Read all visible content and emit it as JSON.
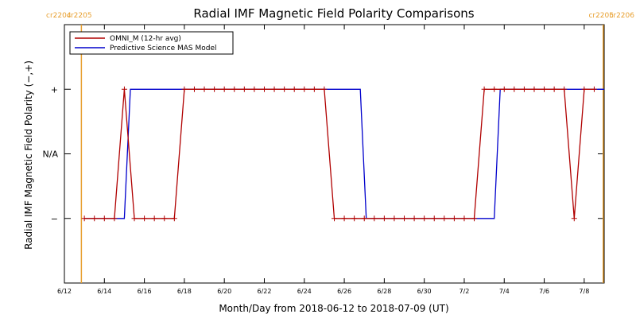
{
  "chart_data": {
    "type": "line",
    "title": "Radial IMF Magnetic Field Polarity Comparisons",
    "xlabel": "Month/Day from 2018-06-12 to 2018-07-09 (UT)",
    "ylabel": "Radial IMF Magnetic Field Polarity (−,+)",
    "x_range_days": [
      0,
      27
    ],
    "y_range": [
      -2,
      2
    ],
    "y_ticks": [
      {
        "value": -1,
        "label": "−"
      },
      {
        "value": 0,
        "label": "N/A"
      },
      {
        "value": 1,
        "label": "+"
      }
    ],
    "x_ticks": [
      {
        "day": 0,
        "label": "6/12"
      },
      {
        "day": 2,
        "label": "6/14"
      },
      {
        "day": 4,
        "label": "6/16"
      },
      {
        "day": 6,
        "label": "6/18"
      },
      {
        "day": 8,
        "label": "6/20"
      },
      {
        "day": 10,
        "label": "6/22"
      },
      {
        "day": 12,
        "label": "6/24"
      },
      {
        "day": 14,
        "label": "6/26"
      },
      {
        "day": 16,
        "label": "6/28"
      },
      {
        "day": 18,
        "label": "6/30"
      },
      {
        "day": 20,
        "label": "7/2"
      },
      {
        "day": 22,
        "label": "7/4"
      },
      {
        "day": 24,
        "label": "7/6"
      },
      {
        "day": 26,
        "label": "7/8"
      }
    ],
    "rotation_markers": [
      {
        "day": 0.85,
        "left_label": "cr2204",
        "right_label": "cr2205"
      },
      {
        "day": 26.95,
        "left_label": "cr2205",
        "right_label": "cr2206"
      }
    ],
    "series": [
      {
        "name": "OMNI_M (12-hr avg)",
        "color": "#b00000",
        "markers": true,
        "points": [
          [
            1.0,
            -1
          ],
          [
            1.5,
            -1
          ],
          [
            2.0,
            -1
          ],
          [
            2.5,
            -1
          ],
          [
            3.0,
            1
          ],
          [
            3.5,
            -1
          ],
          [
            4.0,
            -1
          ],
          [
            4.5,
            -1
          ],
          [
            5.0,
            -1
          ],
          [
            5.5,
            -1
          ],
          [
            6.0,
            1
          ],
          [
            6.5,
            1
          ],
          [
            7.0,
            1
          ],
          [
            7.5,
            1
          ],
          [
            8.0,
            1
          ],
          [
            8.5,
            1
          ],
          [
            9.0,
            1
          ],
          [
            9.5,
            1
          ],
          [
            10.0,
            1
          ],
          [
            10.5,
            1
          ],
          [
            11.0,
            1
          ],
          [
            11.5,
            1
          ],
          [
            12.0,
            1
          ],
          [
            12.5,
            1
          ],
          [
            13.0,
            1
          ],
          [
            13.5,
            -1
          ],
          [
            14.0,
            -1
          ],
          [
            14.5,
            -1
          ],
          [
            15.0,
            -1
          ],
          [
            15.5,
            -1
          ],
          [
            16.0,
            -1
          ],
          [
            16.5,
            -1
          ],
          [
            17.0,
            -1
          ],
          [
            17.5,
            -1
          ],
          [
            18.0,
            -1
          ],
          [
            18.5,
            -1
          ],
          [
            19.0,
            -1
          ],
          [
            19.5,
            -1
          ],
          [
            20.0,
            -1
          ],
          [
            20.5,
            -1
          ],
          [
            21.0,
            1
          ],
          [
            21.5,
            1
          ],
          [
            22.0,
            1
          ],
          [
            22.5,
            1
          ],
          [
            23.0,
            1
          ],
          [
            23.5,
            1
          ],
          [
            24.0,
            1
          ],
          [
            24.5,
            1
          ],
          [
            25.0,
            1
          ],
          [
            25.5,
            -1
          ],
          [
            26.0,
            1
          ],
          [
            26.5,
            1
          ]
        ]
      },
      {
        "name": "Predictive Science MAS Model",
        "color": "#0000cc",
        "markers": false,
        "points": [
          [
            1.0,
            -1
          ],
          [
            3.0,
            -1
          ],
          [
            3.3,
            1
          ],
          [
            14.8,
            1
          ],
          [
            15.1,
            -1
          ],
          [
            21.5,
            -1
          ],
          [
            21.8,
            1
          ],
          [
            27.0,
            1
          ]
        ]
      }
    ],
    "legend": "top-left"
  },
  "colors": {
    "rotation_marker": "#e8a030",
    "axes": "#000000"
  }
}
